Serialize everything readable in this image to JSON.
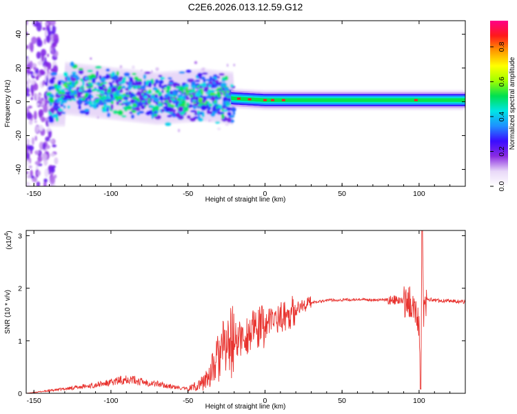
{
  "title": "C2E6.2026.013.12.59.G12",
  "colormap": [
    "#ffffff",
    "#e8d8f8",
    "#8a2be2",
    "#3a0cff",
    "#1e90ff",
    "#00e5e5",
    "#00e050",
    "#a0ff00",
    "#ffff00",
    "#ff9900",
    "#ff1a1a",
    "#ff0088"
  ],
  "colorbar": {
    "label": "Normalized spectral amplitude",
    "ticks": [
      "0.0",
      "0.2",
      "0.4",
      "0.6",
      "0.8"
    ],
    "tick_values": [
      0.0,
      0.2,
      0.4,
      0.6,
      0.8
    ],
    "range": [
      0.0,
      0.95
    ]
  },
  "chart_data": [
    {
      "type": "heatmap",
      "xlabel": "Height of straight line (km)",
      "ylabel": "Frequency (Hz)",
      "xlim": [
        -155,
        130
      ],
      "ylim": [
        -50,
        48
      ],
      "xticks": [
        -150,
        -100,
        -50,
        0,
        50,
        100
      ],
      "xtick_labels": [
        "-150",
        "-100",
        "-50",
        "0",
        "50",
        "100"
      ],
      "yticks": [
        -40,
        -20,
        0,
        20,
        40
      ],
      "ytick_labels": [
        "-40",
        "-20",
        "0",
        "20",
        "40"
      ],
      "ridge_frequency_hz": [
        {
          "x": -130,
          "y": 8
        },
        {
          "x": -100,
          "y": 5
        },
        {
          "x": -70,
          "y": 2
        },
        {
          "x": -40,
          "y": 4
        },
        {
          "x": -20,
          "y": 2
        },
        {
          "x": 0,
          "y": 1
        },
        {
          "x": 50,
          "y": 1
        },
        {
          "x": 100,
          "y": 1
        },
        {
          "x": 130,
          "y": 1
        }
      ]
    },
    {
      "type": "line",
      "xlabel": "Height of straight line (km)",
      "ylabel": "SNR (10 * v/v)",
      "yunit_label": "(x10",
      "yunit_exponent": "4",
      "xlim": [
        -155,
        130
      ],
      "ylim": [
        0,
        3.1
      ],
      "xticks": [
        -150,
        -100,
        -50,
        0,
        50,
        100
      ],
      "xtick_labels": [
        "-150",
        "-100",
        "-50",
        "0",
        "50",
        "100"
      ],
      "yticks": [
        0,
        1,
        2,
        3
      ],
      "ytick_labels": [
        "0",
        "1",
        "2",
        "3"
      ],
      "series_color": "#e8322e",
      "x": [
        -155,
        -140,
        -120,
        -100,
        -90,
        -80,
        -70,
        -60,
        -50,
        -40,
        -35,
        -30,
        -25,
        -20,
        -15,
        -10,
        -5,
        0,
        5,
        10,
        15,
        20,
        25,
        30,
        40,
        50,
        60,
        70,
        80,
        85,
        90,
        95,
        98,
        100,
        101,
        102,
        103,
        105,
        110,
        120,
        130
      ],
      "y": [
        0.0,
        0.05,
        0.12,
        0.2,
        0.28,
        0.22,
        0.18,
        0.12,
        0.08,
        0.2,
        0.4,
        0.7,
        0.9,
        1.0,
        1.05,
        1.15,
        1.2,
        1.3,
        1.4,
        1.45,
        1.5,
        1.6,
        1.68,
        1.73,
        1.77,
        1.78,
        1.78,
        1.78,
        1.78,
        1.77,
        1.75,
        1.72,
        1.6,
        1.3,
        0.1,
        3.05,
        1.5,
        1.8,
        1.77,
        1.76,
        1.74
      ]
    }
  ]
}
